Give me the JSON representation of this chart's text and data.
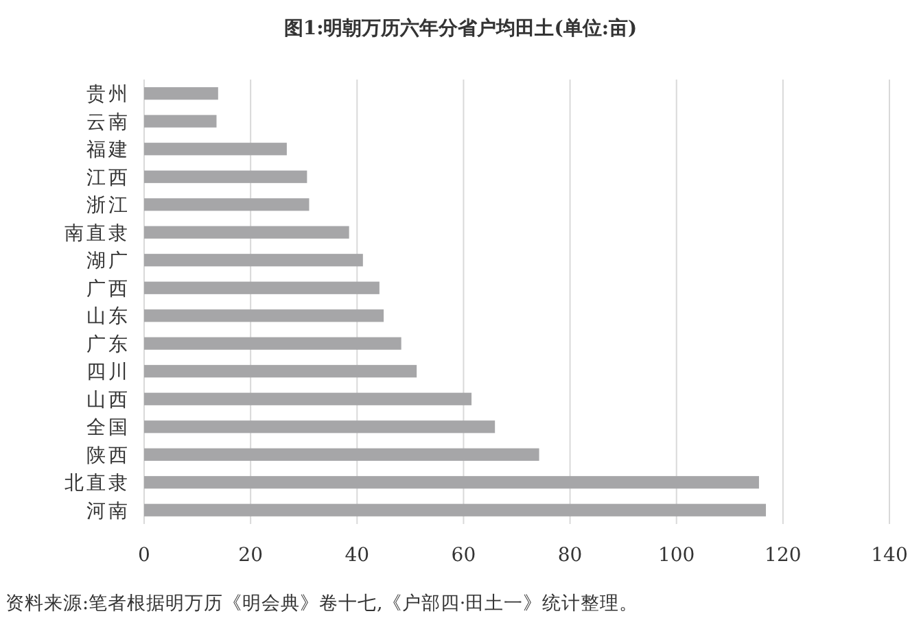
{
  "chart_data": {
    "type": "bar",
    "orientation": "horizontal",
    "title": "图1:明朝万历六年分省户均田土(单位:亩)",
    "categories": [
      "贵州",
      "云南",
      "福建",
      "江西",
      "浙江",
      "南直隶",
      "湖广",
      "广西",
      "山东",
      "广东",
      "四川",
      "山西",
      "全国",
      "陕西",
      "北直隶",
      "河南"
    ],
    "values": [
      13.9,
      13.6,
      26.8,
      30.6,
      31.0,
      38.5,
      41.1,
      44.2,
      45.0,
      48.3,
      51.2,
      61.5,
      65.9,
      74.2,
      115.5,
      116.8
    ],
    "color": "#a6a6a8",
    "xlim": [
      0,
      140
    ],
    "xticks": [
      0,
      20,
      40,
      60,
      80,
      100,
      120,
      140
    ],
    "grid": "x",
    "annotations": [
      "资料来源:笔者根据明万历《明会典》卷十七,《户部四·田土一》统计整理。"
    ]
  }
}
